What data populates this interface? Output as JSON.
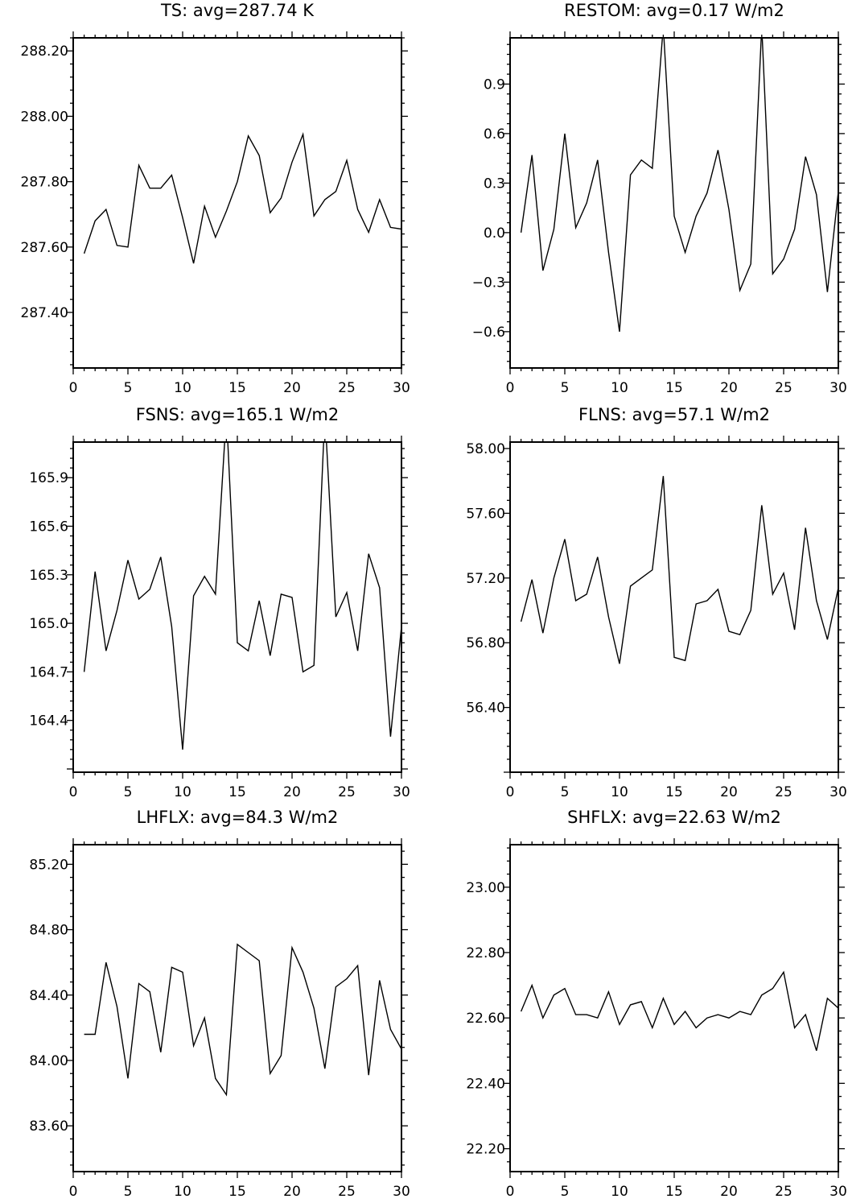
{
  "chart_data": [
    {
      "type": "line",
      "title": "TS: avg=287.74 K",
      "xlim": [
        0,
        30
      ],
      "ylim": [
        287.23,
        288.24
      ],
      "x_ticks": [
        0,
        5,
        10,
        15,
        20,
        25,
        30
      ],
      "x_tick_labels": [
        "0",
        "5",
        "10",
        "15",
        "20",
        "25",
        "30"
      ],
      "y_ticks": [
        287.4,
        287.6,
        287.8,
        288.0,
        288.2
      ],
      "y_tick_labels": [
        "287.40",
        "287.60",
        "287.80",
        "288.00",
        "288.20"
      ],
      "x": [
        1,
        2,
        3,
        4,
        5,
        6,
        7,
        8,
        9,
        10,
        11,
        12,
        13,
        14,
        15,
        16,
        17,
        18,
        19,
        20,
        21,
        22,
        23,
        24,
        25,
        26,
        27,
        28,
        29,
        30
      ],
      "values": [
        287.58,
        287.68,
        287.715,
        287.605,
        287.6,
        287.85,
        287.78,
        287.78,
        287.82,
        287.69,
        287.55,
        287.725,
        287.63,
        287.71,
        287.8,
        287.94,
        287.88,
        287.705,
        287.75,
        287.86,
        287.945,
        287.695,
        287.745,
        287.77,
        287.865,
        287.715,
        287.645,
        287.745,
        287.66,
        287.655
      ]
    },
    {
      "type": "line",
      "title": "RESTOM: avg=0.17 W/m2",
      "xlim": [
        0,
        30
      ],
      "ylim": [
        -0.82,
        1.18
      ],
      "x_ticks": [
        0,
        5,
        10,
        15,
        20,
        25,
        30
      ],
      "x_tick_labels": [
        "0",
        "5",
        "10",
        "15",
        "20",
        "25",
        "30"
      ],
      "y_ticks": [
        -0.6,
        -0.3,
        0.0,
        0.3,
        0.6,
        0.9
      ],
      "y_tick_labels": [
        "−0.6",
        "−0.3",
        "0.0",
        "0.3",
        "0.6",
        "0.9"
      ],
      "x": [
        1,
        2,
        3,
        4,
        5,
        6,
        7,
        8,
        9,
        10,
        11,
        12,
        13,
        14,
        15,
        16,
        17,
        18,
        19,
        20,
        21,
        22,
        23,
        24,
        25,
        26,
        27,
        28,
        29,
        30
      ],
      "values": [
        0.0,
        0.47,
        -0.23,
        0.02,
        0.6,
        0.03,
        0.18,
        0.44,
        -0.12,
        -0.6,
        0.35,
        0.44,
        0.39,
        1.25,
        0.1,
        -0.12,
        0.1,
        0.24,
        0.5,
        0.14,
        -0.35,
        -0.19,
        1.25,
        -0.25,
        -0.16,
        0.02,
        0.46,
        0.23,
        -0.36,
        0.25
      ]
    },
    {
      "type": "line",
      "title": "FSNS: avg=165.1 W/m2",
      "xlim": [
        0,
        30
      ],
      "ylim": [
        164.08,
        166.12
      ],
      "x_ticks": [
        0,
        5,
        10,
        15,
        20,
        25,
        30
      ],
      "x_tick_labels": [
        "0",
        "5",
        "10",
        "15",
        "20",
        "25",
        "30"
      ],
      "y_ticks": [
        164.4,
        164.7,
        165.0,
        165.3,
        165.6,
        165.9
      ],
      "y_tick_labels": [
        "164.4",
        "164.7",
        "165.0",
        "165.3",
        "165.6",
        "165.9"
      ],
      "x": [
        1,
        2,
        3,
        4,
        5,
        6,
        7,
        8,
        9,
        10,
        11,
        12,
        13,
        14,
        15,
        16,
        17,
        18,
        19,
        20,
        21,
        22,
        23,
        24,
        25,
        26,
        27,
        28,
        29,
        30
      ],
      "values": [
        164.7,
        165.32,
        164.83,
        165.08,
        165.39,
        165.15,
        165.21,
        165.41,
        164.98,
        164.22,
        165.17,
        165.29,
        165.18,
        166.3,
        164.88,
        164.83,
        165.14,
        164.8,
        165.18,
        165.16,
        164.7,
        164.74,
        166.3,
        165.04,
        165.19,
        164.83,
        165.43,
        165.22,
        164.3,
        164.98
      ]
    },
    {
      "type": "line",
      "title": "FLNS: avg=57.1 W/m2",
      "xlim": [
        0,
        30
      ],
      "ylim": [
        56.0,
        58.04
      ],
      "x_ticks": [
        0,
        5,
        10,
        15,
        20,
        25,
        30
      ],
      "x_tick_labels": [
        "0",
        "5",
        "10",
        "15",
        "20",
        "25",
        "30"
      ],
      "y_ticks": [
        56.4,
        56.8,
        57.2,
        57.6,
        58.0
      ],
      "y_tick_labels": [
        "56.40",
        "56.80",
        "57.20",
        "57.60",
        "58.00"
      ],
      "x": [
        1,
        2,
        3,
        4,
        5,
        6,
        7,
        8,
        9,
        10,
        11,
        12,
        13,
        14,
        15,
        16,
        17,
        18,
        19,
        20,
        21,
        22,
        23,
        24,
        25,
        26,
        27,
        28,
        29,
        30
      ],
      "values": [
        56.93,
        57.19,
        56.86,
        57.2,
        57.44,
        57.06,
        57.1,
        57.33,
        56.96,
        56.67,
        57.15,
        57.2,
        57.25,
        57.83,
        56.71,
        56.69,
        57.04,
        57.06,
        57.13,
        56.87,
        56.85,
        57.0,
        57.65,
        57.1,
        57.23,
        56.88,
        57.51,
        57.06,
        56.82,
        57.14
      ]
    },
    {
      "type": "line",
      "title": "LHFLX: avg=84.3 W/m2",
      "xlim": [
        0,
        30
      ],
      "ylim": [
        83.32,
        85.32
      ],
      "x_ticks": [
        0,
        5,
        10,
        15,
        20,
        25,
        30
      ],
      "x_tick_labels": [
        "0",
        "5",
        "10",
        "15",
        "20",
        "25",
        "30"
      ],
      "y_ticks": [
        83.6,
        84.0,
        84.4,
        84.8,
        85.2
      ],
      "y_tick_labels": [
        "83.60",
        "84.00",
        "84.40",
        "84.80",
        "85.20"
      ],
      "x": [
        1,
        2,
        3,
        4,
        5,
        6,
        7,
        8,
        9,
        10,
        11,
        12,
        13,
        14,
        15,
        16,
        17,
        18,
        19,
        20,
        21,
        22,
        23,
        24,
        25,
        26,
        27,
        28,
        29,
        30
      ],
      "values": [
        84.16,
        84.16,
        84.6,
        84.33,
        83.89,
        84.47,
        84.42,
        84.05,
        84.57,
        84.54,
        84.09,
        84.26,
        83.89,
        83.79,
        84.71,
        84.66,
        84.61,
        83.92,
        84.03,
        84.69,
        84.54,
        84.32,
        83.95,
        84.45,
        84.5,
        84.58,
        83.91,
        84.49,
        84.19,
        84.07
      ]
    },
    {
      "type": "line",
      "title": "SHFLX: avg=22.63 W/m2",
      "xlim": [
        0,
        30
      ],
      "ylim": [
        22.13,
        23.13
      ],
      "x_ticks": [
        0,
        5,
        10,
        15,
        20,
        25,
        30
      ],
      "x_tick_labels": [
        "0",
        "5",
        "10",
        "15",
        "20",
        "25",
        "30"
      ],
      "y_ticks": [
        22.2,
        22.4,
        22.6,
        22.8,
        23.0
      ],
      "y_tick_labels": [
        "22.20",
        "22.40",
        "22.60",
        "22.80",
        "23.00"
      ],
      "x": [
        1,
        2,
        3,
        4,
        5,
        6,
        7,
        8,
        9,
        10,
        11,
        12,
        13,
        14,
        15,
        16,
        17,
        18,
        19,
        20,
        21,
        22,
        23,
        24,
        25,
        26,
        27,
        28,
        29,
        30
      ],
      "values": [
        22.62,
        22.7,
        22.6,
        22.67,
        22.69,
        22.61,
        22.61,
        22.6,
        22.68,
        22.58,
        22.64,
        22.65,
        22.57,
        22.66,
        22.58,
        22.62,
        22.57,
        22.6,
        22.61,
        22.6,
        22.62,
        22.61,
        22.67,
        22.69,
        22.74,
        22.57,
        22.61,
        22.5,
        22.66,
        22.63
      ]
    }
  ]
}
